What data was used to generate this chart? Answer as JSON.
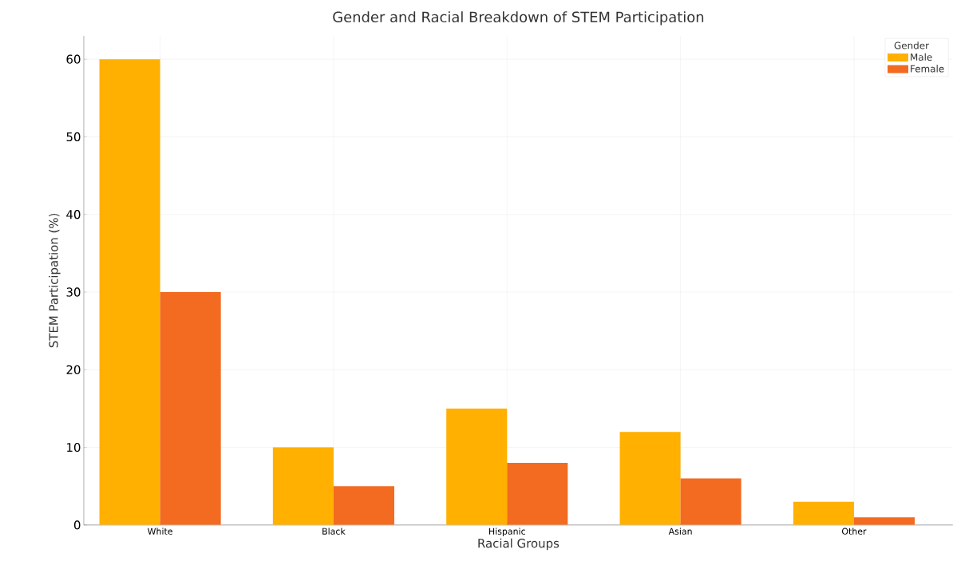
{
  "chart_data": {
    "type": "bar",
    "title": "Gender and Racial Breakdown of STEM Participation",
    "xlabel": "Racial Groups",
    "ylabel": "STEM Participation (%)",
    "legend_title": "Gender",
    "categories": [
      "White",
      "Black",
      "Hispanic",
      "Asian",
      "Other"
    ],
    "series": [
      {
        "name": "Male",
        "color": "#ffb000",
        "values": [
          60,
          10,
          15,
          12,
          3
        ]
      },
      {
        "name": "Female",
        "color": "#f26b21",
        "values": [
          30,
          5,
          8,
          6,
          1
        ]
      }
    ],
    "ylim": [
      0,
      63
    ],
    "yticks": [
      0,
      10,
      20,
      30,
      40,
      50,
      60
    ],
    "grid": true,
    "legend": "top right"
  }
}
